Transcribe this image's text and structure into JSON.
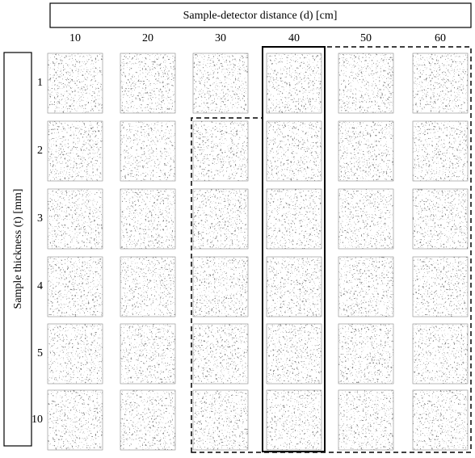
{
  "header": {
    "title": "Sample-detector distance (d) [cm]",
    "columns": [
      "10",
      "20",
      "30",
      "40",
      "50",
      "60"
    ]
  },
  "side": {
    "title": "Sample thickness (t) [mm]",
    "rows": [
      "1",
      "2",
      "3",
      "4",
      "5",
      "10"
    ]
  }
}
